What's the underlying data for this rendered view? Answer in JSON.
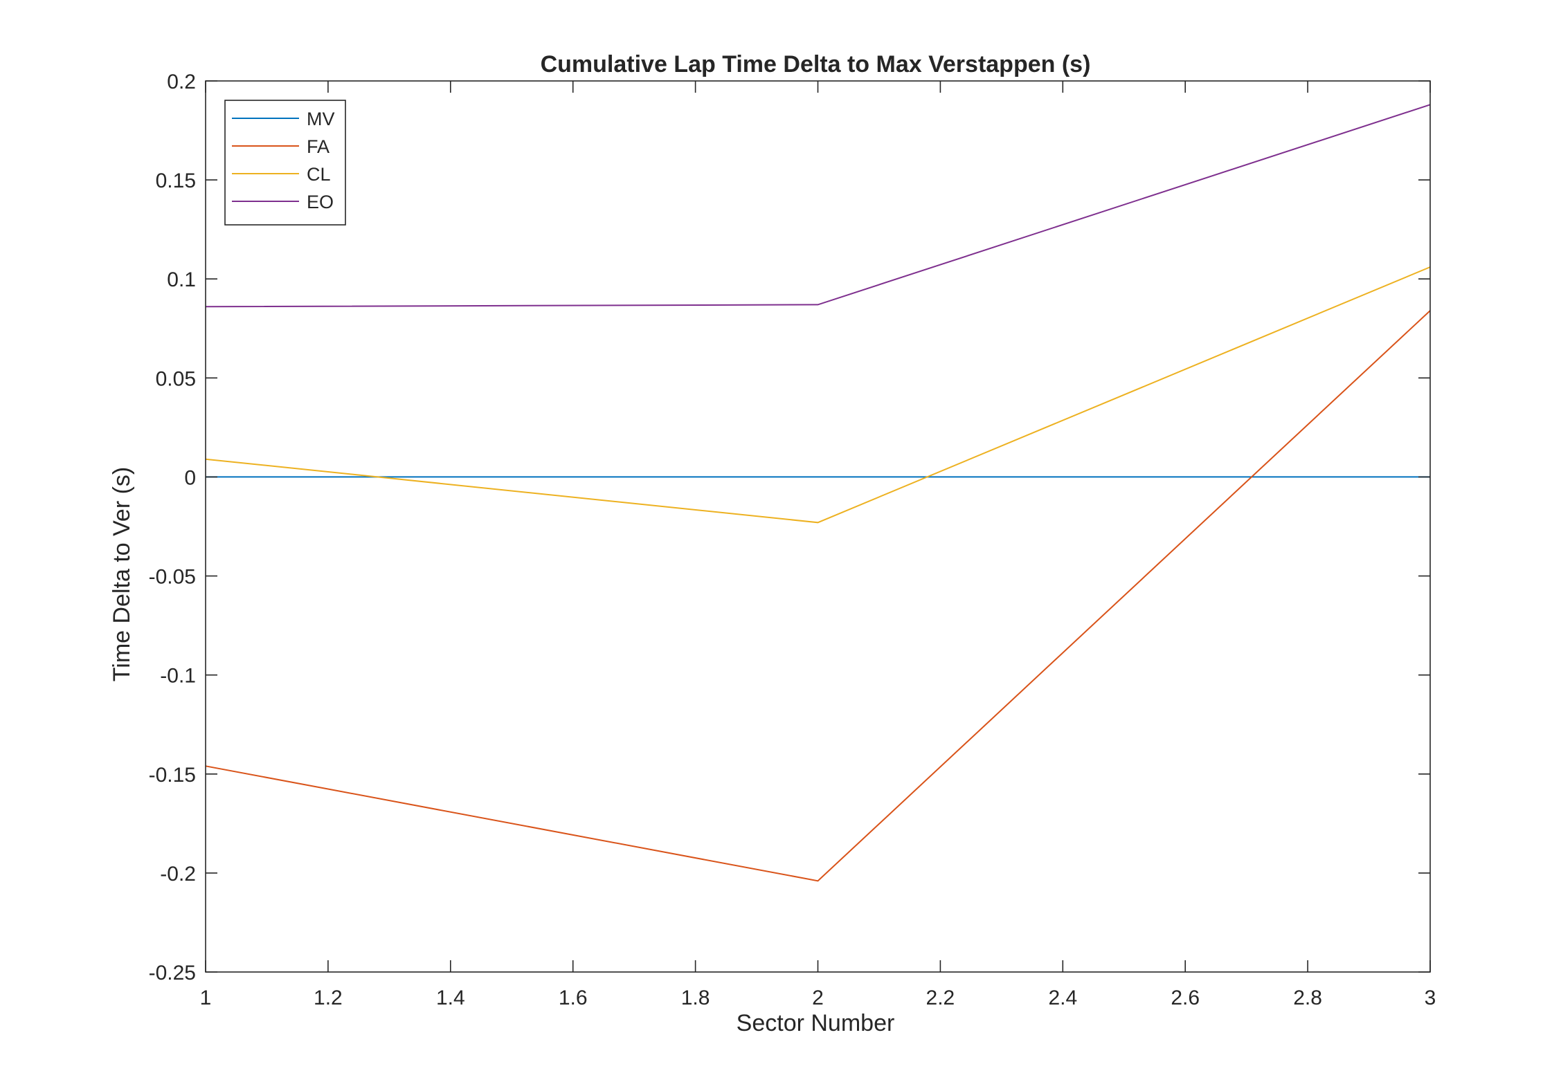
{
  "chart_data": {
    "type": "line",
    "title": "Cumulative Lap Time Delta to Max Verstappen (s)",
    "xlabel": "Sector Number",
    "ylabel": "Time Delta to Ver (s)",
    "xlim": [
      1,
      3
    ],
    "ylim": [
      -0.25,
      0.2
    ],
    "x_ticks": [
      "1",
      "1.2",
      "1.4",
      "1.6",
      "1.8",
      "2",
      "2.2",
      "2.4",
      "2.6",
      "2.8",
      "3"
    ],
    "x_tick_values": [
      1,
      1.2,
      1.4,
      1.6,
      1.8,
      2,
      2.2,
      2.4,
      2.6,
      2.8,
      3
    ],
    "y_ticks": [
      "0.2",
      "0.15",
      "0.1",
      "0.05",
      "0",
      "-0.05",
      "-0.1",
      "-0.15",
      "-0.2",
      "-0.25"
    ],
    "y_tick_values": [
      0.2,
      0.15,
      0.1,
      0.05,
      0,
      -0.05,
      -0.1,
      -0.15,
      -0.2,
      -0.25
    ],
    "grid": false,
    "legend_position": "top-left",
    "x": [
      1,
      2,
      3
    ],
    "series": [
      {
        "name": "MV",
        "color": "#0072BD",
        "values": [
          0,
          0,
          0
        ]
      },
      {
        "name": "FA",
        "color": "#D95319",
        "values": [
          -0.146,
          -0.204,
          0.084
        ]
      },
      {
        "name": "CL",
        "color": "#EDB120",
        "values": [
          0.009,
          -0.023,
          0.106
        ]
      },
      {
        "name": "EO",
        "color": "#7E2F8E",
        "values": [
          0.086,
          0.087,
          0.188
        ]
      }
    ]
  }
}
